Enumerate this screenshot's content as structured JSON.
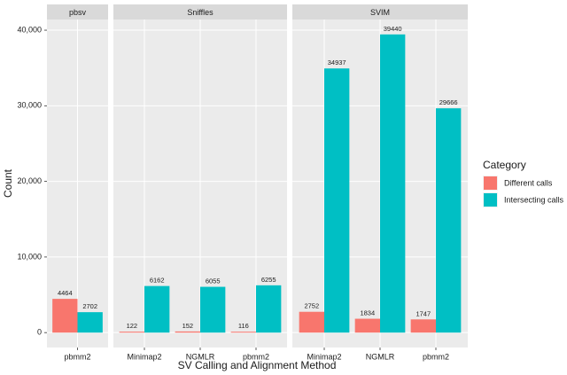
{
  "chart_data": {
    "type": "bar",
    "x_label": "SV Calling and Alignment Method",
    "y_label": "Count",
    "legend_title": "Category",
    "legend_position": "right",
    "grid": true,
    "ylim": [
      -1972,
      41412
    ],
    "yticks": [
      0,
      {
        "value": 10000,
        "label": "10,000"
      },
      {
        "value": 20000,
        "label": "20,000"
      },
      {
        "value": 30000,
        "label": "30,000"
      },
      {
        "value": 40000,
        "label": "40,000"
      }
    ],
    "series": [
      {
        "name": "Different calls",
        "color": "#F8766D"
      },
      {
        "name": "Intersecting calls",
        "color": "#00BFC4"
      }
    ],
    "facets": [
      {
        "title": "pbsv",
        "categories": [
          "pbmm2"
        ],
        "series": [
          {
            "values": [
              4464
            ]
          },
          {
            "values": [
              2702
            ]
          }
        ]
      },
      {
        "title": "Sniffles",
        "categories": [
          "Minimap2",
          "NGMLR",
          "pbmm2"
        ],
        "series": [
          {
            "values": [
              122,
              152,
              116
            ]
          },
          {
            "values": [
              6162,
              6055,
              6255
            ]
          }
        ]
      },
      {
        "title": "SVIM",
        "categories": [
          "Minimap2",
          "NGMLR",
          "pbmm2"
        ],
        "series": [
          {
            "values": [
              2752,
              1834,
              1747
            ]
          },
          {
            "values": [
              34937,
              39440,
              29666
            ]
          }
        ]
      }
    ]
  }
}
